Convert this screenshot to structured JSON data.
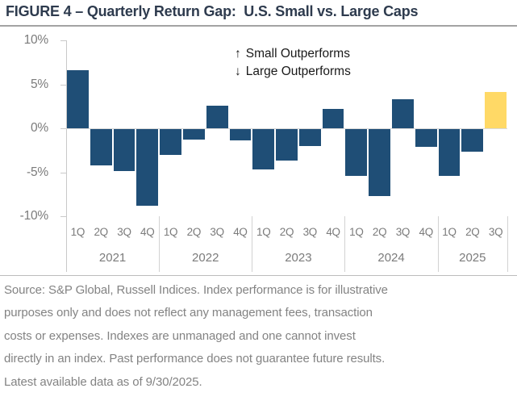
{
  "title": "FIGURE 4 – Quarterly Return Gap:  U.S. Small vs. Large Caps",
  "chart_data": {
    "type": "bar",
    "title": "FIGURE 4 – Quarterly Return Gap: U.S. Small vs. Large Caps",
    "ylim": [
      -10,
      10
    ],
    "ytick_values": [
      10,
      5,
      0,
      -5,
      -10
    ],
    "ytick_labels": [
      "10%",
      "5%",
      "0%",
      "-5%",
      "-10%"
    ],
    "grid": "off",
    "groups": [
      {
        "year": "2021",
        "categories": [
          "1Q",
          "2Q",
          "3Q",
          "4Q"
        ],
        "values": [
          6.6,
          -4.1,
          -4.8,
          -8.7
        ]
      },
      {
        "year": "2022",
        "categories": [
          "1Q",
          "2Q",
          "3Q",
          "4Q"
        ],
        "values": [
          -2.9,
          -1.2,
          2.6,
          -1.3
        ]
      },
      {
        "year": "2023",
        "categories": [
          "1Q",
          "2Q",
          "3Q",
          "4Q"
        ],
        "values": [
          -4.6,
          -3.6,
          -1.9,
          2.2
        ]
      },
      {
        "year": "2024",
        "categories": [
          "1Q",
          "2Q",
          "3Q",
          "4Q"
        ],
        "values": [
          -5.3,
          -7.6,
          3.3,
          -2.0
        ]
      },
      {
        "year": "2025",
        "categories": [
          "1Q",
          "2Q",
          "3Q"
        ],
        "values": [
          -5.3,
          -2.6,
          4.1
        ]
      }
    ],
    "colors": {
      "bar": "#1F4E76",
      "highlight": "#FFD966"
    },
    "highlight": {
      "year": "2025",
      "quarter": "3Q"
    },
    "annotations": [
      {
        "icon": "↑",
        "label": "Small Outperforms"
      },
      {
        "icon": "↓",
        "label": "Large Outperforms"
      }
    ]
  },
  "source": {
    "lines": [
      "Source: S&P Global, Russell Indices. Index performance is for illustrative",
      "purposes only and does not reflect any management fees, transaction",
      "costs or expenses. Indexes are unmanaged and one cannot invest",
      "directly in an index. Past performance does not guarantee future results.",
      "Latest available data as of 9/30/2025."
    ]
  }
}
